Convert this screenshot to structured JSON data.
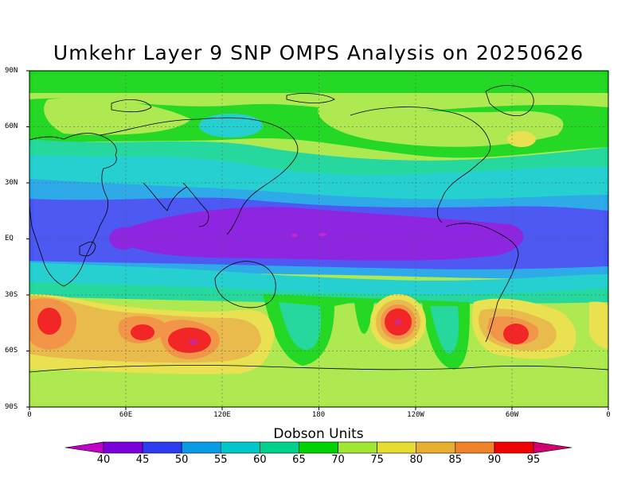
{
  "title": "Umkehr Layer 9 SNP OMPS Analysis on 20250626",
  "lat_labels": [
    "90N",
    "60N",
    "30N",
    "EQ",
    "30S",
    "60S",
    "90S"
  ],
  "lon_labels": [
    "0",
    "60E",
    "120E",
    "180",
    "120W",
    "60W",
    "0"
  ],
  "colorbar": {
    "title": "Dobson Units",
    "labels": [
      "40",
      "45",
      "50",
      "55",
      "60",
      "65",
      "70",
      "75",
      "80",
      "85",
      "90",
      "95"
    ],
    "colors": [
      "#c000c8",
      "#7a00dc",
      "#2e3cf0",
      "#0a9be6",
      "#00c8c8",
      "#00d28c",
      "#00d200",
      "#a0e632",
      "#e6dc32",
      "#e6af2d",
      "#f08228",
      "#f00000",
      "#d2006e"
    ]
  },
  "map": {
    "background_level_color": "#a0e632",
    "extent_lon": [
      0,
      360
    ],
    "extent_lat": [
      -90,
      90
    ]
  }
}
